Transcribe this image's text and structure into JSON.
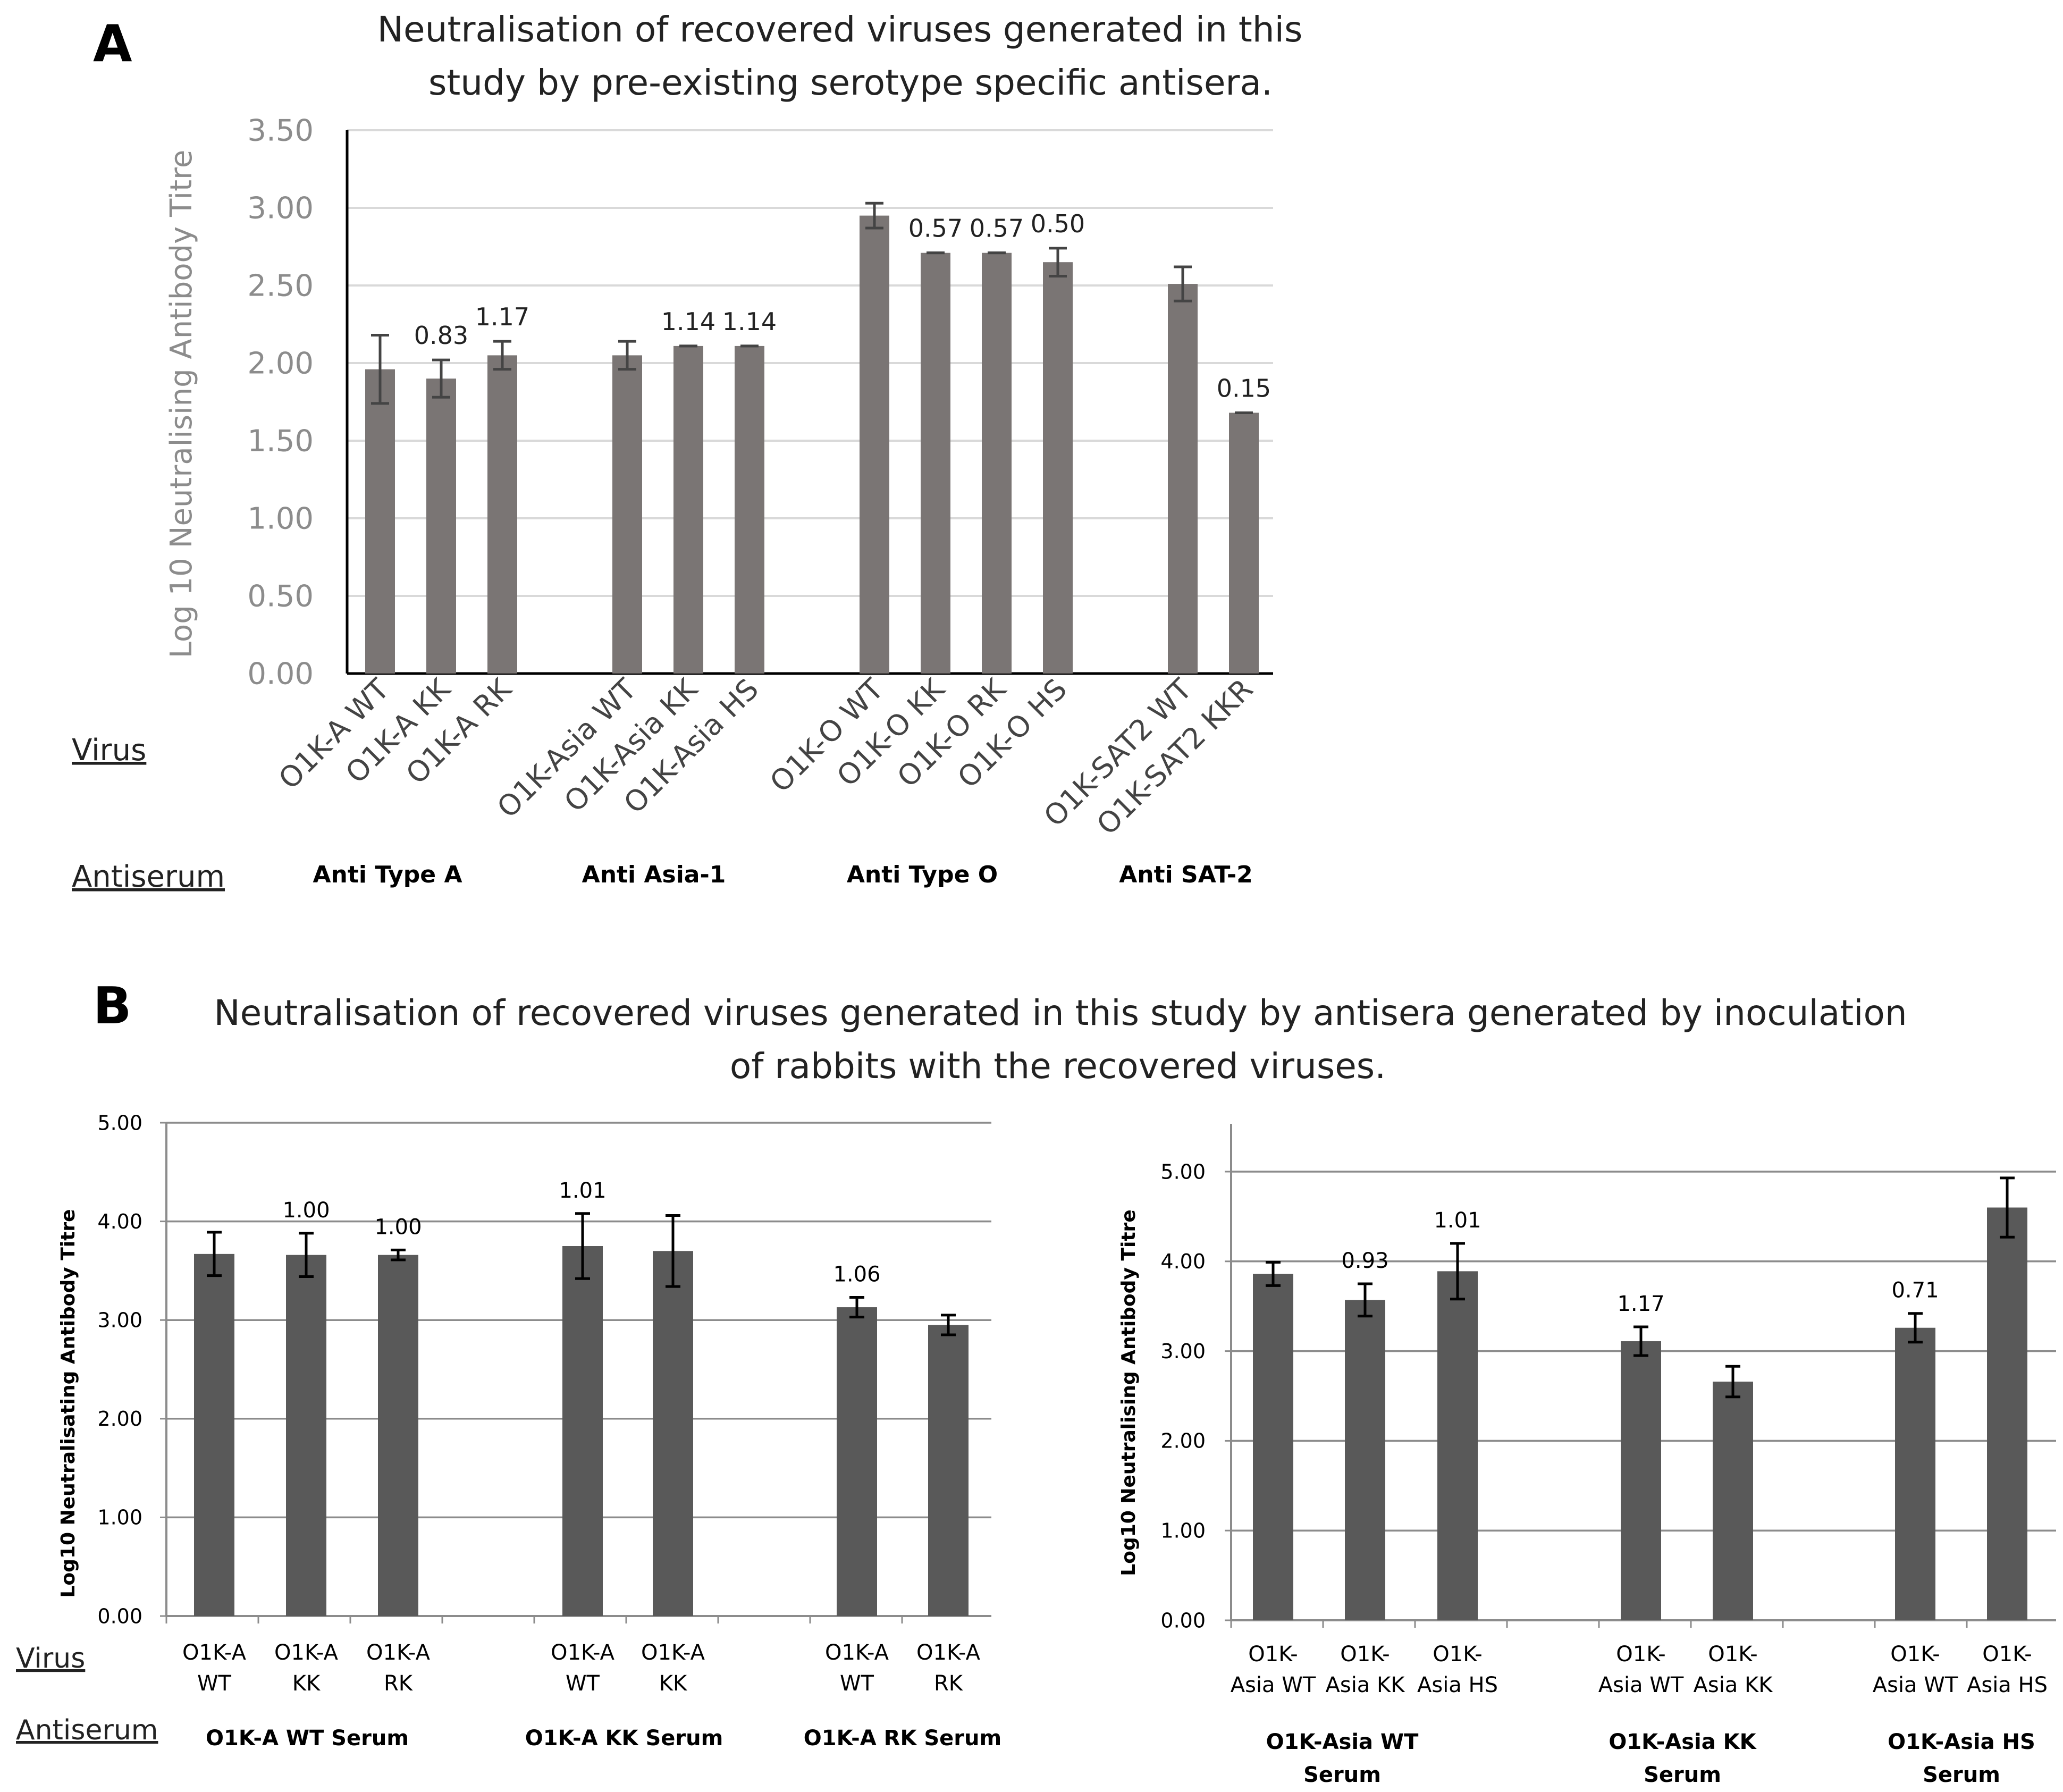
{
  "panels": {
    "a": {
      "letter": "A",
      "title_lines": [
        "Neutralisation of recovered viruses generated in this",
        "study by pre-existing serotype specific antisera."
      ]
    },
    "b": {
      "letter": "B",
      "title_lines": [
        "Neutralisation of recovered viruses generated in this study by antisera generated  by inoculation",
        "of rabbits with the recovered viruses."
      ]
    }
  },
  "row_labels": {
    "virus": "Virus",
    "antiserum": "Antiserum"
  },
  "colors": {
    "bar_a": "#7a7574",
    "bar_b": "#595959",
    "grid": "#d9d9d9",
    "grid_b": "#8c8c8c",
    "axis_text_a": "#8c8c8c"
  },
  "chart_data": [
    {
      "type": "bar",
      "ylabel": "Log 10 Neutralising Antibody Titre",
      "ylim": [
        0,
        3.5
      ],
      "yticks": [
        "0.00",
        "0.50",
        "1.00",
        "1.50",
        "2.00",
        "2.50",
        "3.00",
        "3.50"
      ],
      "grid": true,
      "groups": [
        {
          "label": "Anti Type A",
          "bars": [
            {
              "category": "O1K-A WT",
              "value": 1.96,
              "error": 0.22,
              "annotation": ""
            },
            {
              "category": "O1K-A KK",
              "value": 1.9,
              "error": 0.12,
              "annotation": "0.83"
            },
            {
              "category": "O1K-A RK",
              "value": 2.05,
              "error": 0.09,
              "annotation": "1.17"
            }
          ]
        },
        {
          "label": "Anti Asia-1",
          "bars": [
            {
              "category": "O1K-Asia WT",
              "value": 2.05,
              "error": 0.09,
              "annotation": ""
            },
            {
              "category": "O1K-Asia KK",
              "value": 2.11,
              "error": 0.0,
              "annotation": "1.14"
            },
            {
              "category": "O1K-Asia HS",
              "value": 2.11,
              "error": 0.0,
              "annotation": "1.14"
            }
          ]
        },
        {
          "label": "Anti Type O",
          "bars": [
            {
              "category": "O1K-O WT",
              "value": 2.95,
              "error": 0.08,
              "annotation": ""
            },
            {
              "category": "O1K-O KK",
              "value": 2.71,
              "error": 0.0,
              "annotation": "0.57"
            },
            {
              "category": "O1K-O RK",
              "value": 2.71,
              "error": 0.0,
              "annotation": "0.57"
            },
            {
              "category": "O1K-O HS",
              "value": 2.65,
              "error": 0.09,
              "annotation": "0.50"
            }
          ]
        },
        {
          "label": "Anti SAT-2",
          "bars": [
            {
              "category": "O1K-SAT2 WT",
              "value": 2.51,
              "error": 0.11,
              "annotation": ""
            },
            {
              "category": "O1K-SAT2 KKR",
              "value": 1.68,
              "error": 0.0,
              "annotation": "0.15"
            }
          ]
        }
      ]
    },
    {
      "type": "bar",
      "ylabel": "Log10 Neutralisating Antibody Titre",
      "ylim": [
        0,
        5
      ],
      "yticks": [
        "0.00",
        "1.00",
        "2.00",
        "3.00",
        "4.00",
        "5.00"
      ],
      "grid": true,
      "groups": [
        {
          "label": "O1K-A WT Serum",
          "bars": [
            {
              "category": "O1K-A WT",
              "value": 3.67,
              "error": 0.22,
              "annotation": ""
            },
            {
              "category": "O1K-A KK",
              "value": 3.66,
              "error": 0.22,
              "annotation": "1.00"
            },
            {
              "category": "O1K-A RK",
              "value": 3.66,
              "error": 0.05,
              "annotation": "1.00"
            }
          ]
        },
        {
          "label": "O1K-A KK Serum",
          "bars": [
            {
              "category": "O1K-A WT",
              "value": 3.75,
              "error": 0.33,
              "annotation": "1.01"
            },
            {
              "category": "O1K-A KK",
              "value": 3.7,
              "error": 0.36,
              "annotation": ""
            }
          ]
        },
        {
          "label": "O1K-A RK Serum",
          "bars": [
            {
              "category": "O1K-A WT",
              "value": 3.13,
              "error": 0.1,
              "annotation": "1.06"
            },
            {
              "category": "O1K-A RK",
              "value": 2.95,
              "error": 0.1,
              "annotation": ""
            }
          ]
        }
      ]
    },
    {
      "type": "bar",
      "ylabel": "Log10 Neutralising Antibody Titre",
      "ylim": [
        0,
        5
      ],
      "yticks": [
        "0.00",
        "1.00",
        "2.00",
        "3.00",
        "4.00",
        "5.00"
      ],
      "grid": true,
      "groups": [
        {
          "label": "O1K-Asia WT Serum",
          "bars": [
            {
              "category": "O1K-Asia WT",
              "value": 3.86,
              "error": 0.13,
              "annotation": ""
            },
            {
              "category": "O1K-Asia KK",
              "value": 3.57,
              "error": 0.18,
              "annotation": "0.93"
            },
            {
              "category": "O1K-Asia HS",
              "value": 3.89,
              "error": 0.31,
              "annotation": "1.01"
            }
          ]
        },
        {
          "label": "O1K-Asia KK Serum",
          "bars": [
            {
              "category": "O1K-Asia WT",
              "value": 3.11,
              "error": 0.16,
              "annotation": "1.17"
            },
            {
              "category": "O1K-Asia KK",
              "value": 2.66,
              "error": 0.17,
              "annotation": ""
            }
          ]
        },
        {
          "label": "O1K-Asia  HS Serum",
          "bars": [
            {
              "category": "O1K-Asia WT",
              "value": 3.26,
              "error": 0.16,
              "annotation": "0.71"
            },
            {
              "category": "O1K-Asia HS",
              "value": 4.6,
              "error": 0.33,
              "annotation": ""
            }
          ]
        }
      ]
    }
  ]
}
